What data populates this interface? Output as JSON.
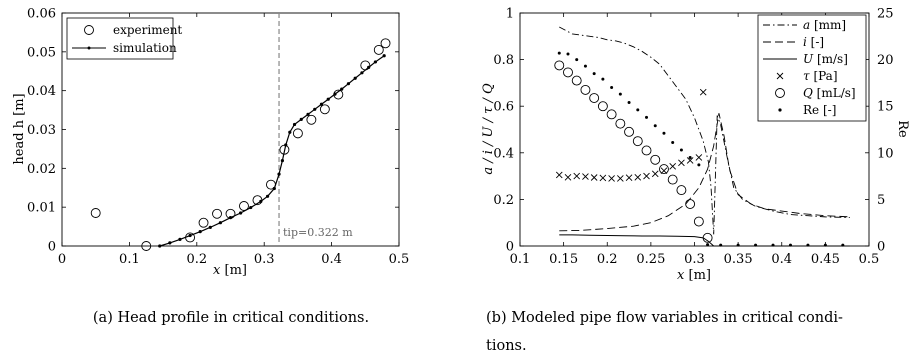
{
  "captions": {
    "a": "(a) Head profile in critical conditions.",
    "b_line1": "(b) Modeled pipe flow variables in critical condi-",
    "b_line2": "tions."
  },
  "chart_data": [
    {
      "type": "scatter",
      "panel": "a",
      "xlabel_var": "x",
      "xlabel_unit": "[m]",
      "ylabel": "head h [m]",
      "xlim": [
        0,
        0.5
      ],
      "ylim": [
        0,
        0.06
      ],
      "xticks": [
        "0",
        "0.1",
        "0.2",
        "0.3",
        "0.4",
        "0.5"
      ],
      "yticks": [
        "0",
        "0.01",
        "0.02",
        "0.03",
        "0.04",
        "0.05",
        "0.06"
      ],
      "grid": false,
      "legend_position": "top-left",
      "annotation": {
        "text": "tip=0.322 m",
        "x": 0.322
      },
      "series": [
        {
          "name": "experiment",
          "marker": "open-circle",
          "points": [
            [
              0.05,
              0.0085
            ],
            [
              0.125,
              0.0
            ],
            [
              0.19,
              0.0022
            ],
            [
              0.21,
              0.006
            ],
            [
              0.23,
              0.0083
            ],
            [
              0.25,
              0.0083
            ],
            [
              0.27,
              0.0103
            ],
            [
              0.29,
              0.0118
            ],
            [
              0.31,
              0.0158
            ],
            [
              0.33,
              0.0248
            ],
            [
              0.35,
              0.029
            ],
            [
              0.37,
              0.0325
            ],
            [
              0.39,
              0.0352
            ],
            [
              0.41,
              0.039
            ],
            [
              0.45,
              0.0465
            ],
            [
              0.47,
              0.0505
            ],
            [
              0.48,
              0.0522
            ]
          ]
        },
        {
          "name": "simulation",
          "marker": "line-dot",
          "points": [
            [
              0.145,
              0.0
            ],
            [
              0.16,
              0.0008
            ],
            [
              0.175,
              0.0017
            ],
            [
              0.19,
              0.0027
            ],
            [
              0.205,
              0.0037
            ],
            [
              0.22,
              0.0048
            ],
            [
              0.235,
              0.006
            ],
            [
              0.25,
              0.0073
            ],
            [
              0.265,
              0.0085
            ],
            [
              0.28,
              0.0099
            ],
            [
              0.295,
              0.0115
            ],
            [
              0.305,
              0.0128
            ],
            [
              0.315,
              0.0148
            ],
            [
              0.322,
              0.0185
            ],
            [
              0.327,
              0.022
            ],
            [
              0.332,
              0.026
            ],
            [
              0.338,
              0.0293
            ],
            [
              0.345,
              0.0313
            ],
            [
              0.355,
              0.0326
            ],
            [
              0.365,
              0.0339
            ],
            [
              0.375,
              0.0352
            ],
            [
              0.385,
              0.0365
            ],
            [
              0.395,
              0.0378
            ],
            [
              0.405,
              0.0391
            ],
            [
              0.415,
              0.0404
            ],
            [
              0.425,
              0.0418
            ],
            [
              0.435,
              0.0432
            ],
            [
              0.445,
              0.0446
            ],
            [
              0.455,
              0.046
            ],
            [
              0.465,
              0.0474
            ],
            [
              0.478,
              0.049
            ]
          ]
        }
      ]
    },
    {
      "type": "line",
      "panel": "b",
      "xlabel_var": "x",
      "xlabel_unit": "[m]",
      "ylabel": "a / i / U / τ / Q",
      "ylabel2": "Re",
      "xlim": [
        0.1,
        0.5
      ],
      "ylim": [
        0,
        1
      ],
      "ylim2": [
        0,
        25
      ],
      "xticks": [
        "0.1",
        "0.15",
        "0.2",
        "0.25",
        "0.3",
        "0.35",
        "0.4",
        "0.45",
        "0.5"
      ],
      "yticks": [
        "0",
        "0.2",
        "0.4",
        "0.6",
        "0.8",
        "1"
      ],
      "yticks2": [
        "0",
        "5",
        "10",
        "15",
        "20",
        "25"
      ],
      "grid": false,
      "legend_position": "top-right",
      "series": [
        {
          "name": "a",
          "unit": "[mm]",
          "style": "dashdot",
          "axis": "left",
          "points": [
            [
              0.145,
              0.94
            ],
            [
              0.16,
              0.91
            ],
            [
              0.17,
              0.905
            ],
            [
              0.18,
              0.9
            ],
            [
              0.19,
              0.895
            ],
            [
              0.2,
              0.885
            ],
            [
              0.21,
              0.88
            ],
            [
              0.22,
              0.87
            ],
            [
              0.23,
              0.855
            ],
            [
              0.24,
              0.835
            ],
            [
              0.25,
              0.81
            ],
            [
              0.26,
              0.78
            ],
            [
              0.27,
              0.73
            ],
            [
              0.28,
              0.68
            ],
            [
              0.29,
              0.63
            ],
            [
              0.3,
              0.55
            ],
            [
              0.31,
              0.45
            ],
            [
              0.316,
              0.36
            ],
            [
              0.319,
              0.25
            ],
            [
              0.322,
              0.05
            ],
            [
              0.326,
              0.56
            ],
            [
              0.33,
              0.52
            ],
            [
              0.338,
              0.37
            ],
            [
              0.345,
              0.25
            ],
            [
              0.355,
              0.2
            ],
            [
              0.37,
              0.17
            ],
            [
              0.39,
              0.15
            ],
            [
              0.41,
              0.135
            ],
            [
              0.43,
              0.13
            ],
            [
              0.45,
              0.125
            ],
            [
              0.478,
              0.122
            ]
          ]
        },
        {
          "name": "i",
          "unit": "[-]",
          "style": "dash",
          "axis": "left",
          "points": [
            [
              0.145,
              0.065
            ],
            [
              0.17,
              0.067
            ],
            [
              0.2,
              0.075
            ],
            [
              0.23,
              0.085
            ],
            [
              0.25,
              0.1
            ],
            [
              0.27,
              0.13
            ],
            [
              0.29,
              0.18
            ],
            [
              0.305,
              0.25
            ],
            [
              0.315,
              0.33
            ],
            [
              0.322,
              0.43
            ],
            [
              0.328,
              0.57
            ],
            [
              0.334,
              0.47
            ],
            [
              0.34,
              0.33
            ],
            [
              0.35,
              0.22
            ],
            [
              0.365,
              0.18
            ],
            [
              0.38,
              0.16
            ],
            [
              0.4,
              0.15
            ],
            [
              0.42,
              0.14
            ],
            [
              0.45,
              0.13
            ],
            [
              0.478,
              0.125
            ]
          ]
        },
        {
          "name": "U",
          "unit": "[m/s]",
          "style": "solid",
          "axis": "left",
          "points": [
            [
              0.145,
              0.048
            ],
            [
              0.16,
              0.048
            ],
            [
              0.18,
              0.046
            ],
            [
              0.2,
              0.045
            ],
            [
              0.22,
              0.044
            ],
            [
              0.24,
              0.043
            ],
            [
              0.26,
              0.043
            ],
            [
              0.28,
              0.042
            ],
            [
              0.3,
              0.04
            ],
            [
              0.31,
              0.035
            ],
            [
              0.316,
              0.02
            ],
            [
              0.322,
              0.0
            ],
            [
              0.478,
              0.0
            ]
          ]
        },
        {
          "name": "τ",
          "unit": "[Pa]",
          "style": "x-marker",
          "axis": "left",
          "points": [
            [
              0.145,
              0.305
            ],
            [
              0.155,
              0.295
            ],
            [
              0.165,
              0.3
            ],
            [
              0.175,
              0.298
            ],
            [
              0.185,
              0.294
            ],
            [
              0.195,
              0.292
            ],
            [
              0.205,
              0.29
            ],
            [
              0.215,
              0.29
            ],
            [
              0.225,
              0.293
            ],
            [
              0.235,
              0.295
            ],
            [
              0.245,
              0.3
            ],
            [
              0.255,
              0.31
            ],
            [
              0.265,
              0.323
            ],
            [
              0.275,
              0.342
            ],
            [
              0.285,
              0.357
            ],
            [
              0.295,
              0.367
            ],
            [
              0.305,
              0.38
            ],
            [
              0.31,
              0.66
            ]
          ]
        },
        {
          "name": "Q",
          "unit": "[mL/s]",
          "style": "open-circle",
          "axis": "left",
          "points": [
            [
              0.145,
              0.775
            ],
            [
              0.155,
              0.745
            ],
            [
              0.165,
              0.71
            ],
            [
              0.175,
              0.67
            ],
            [
              0.185,
              0.635
            ],
            [
              0.195,
              0.6
            ],
            [
              0.205,
              0.565
            ],
            [
              0.215,
              0.525
            ],
            [
              0.225,
              0.49
            ],
            [
              0.235,
              0.45
            ],
            [
              0.245,
              0.41
            ],
            [
              0.255,
              0.37
            ],
            [
              0.265,
              0.33
            ],
            [
              0.275,
              0.285
            ],
            [
              0.285,
              0.24
            ],
            [
              0.295,
              0.18
            ],
            [
              0.305,
              0.105
            ],
            [
              0.315,
              0.035
            ]
          ]
        },
        {
          "name": "Re",
          "unit": "[-]",
          "style": "dot-marker",
          "axis": "right",
          "points": [
            [
              0.145,
              20.7
            ],
            [
              0.155,
              20.6
            ],
            [
              0.165,
              20.0
            ],
            [
              0.175,
              19.3
            ],
            [
              0.185,
              18.5
            ],
            [
              0.195,
              17.9
            ],
            [
              0.205,
              17.0
            ],
            [
              0.215,
              16.3
            ],
            [
              0.225,
              15.4
            ],
            [
              0.235,
              14.6
            ],
            [
              0.245,
              13.8
            ],
            [
              0.255,
              12.9
            ],
            [
              0.265,
              12.1
            ],
            [
              0.275,
              11.1
            ],
            [
              0.285,
              10.3
            ],
            [
              0.295,
              9.5
            ],
            [
              0.305,
              8.7
            ],
            [
              0.315,
              0.15
            ],
            [
              0.33,
              0.1
            ],
            [
              0.35,
              0.1
            ],
            [
              0.37,
              0.1
            ],
            [
              0.39,
              0.1
            ],
            [
              0.41,
              0.1
            ],
            [
              0.43,
              0.1
            ],
            [
              0.45,
              0.1
            ],
            [
              0.47,
              0.1
            ]
          ]
        }
      ]
    }
  ]
}
